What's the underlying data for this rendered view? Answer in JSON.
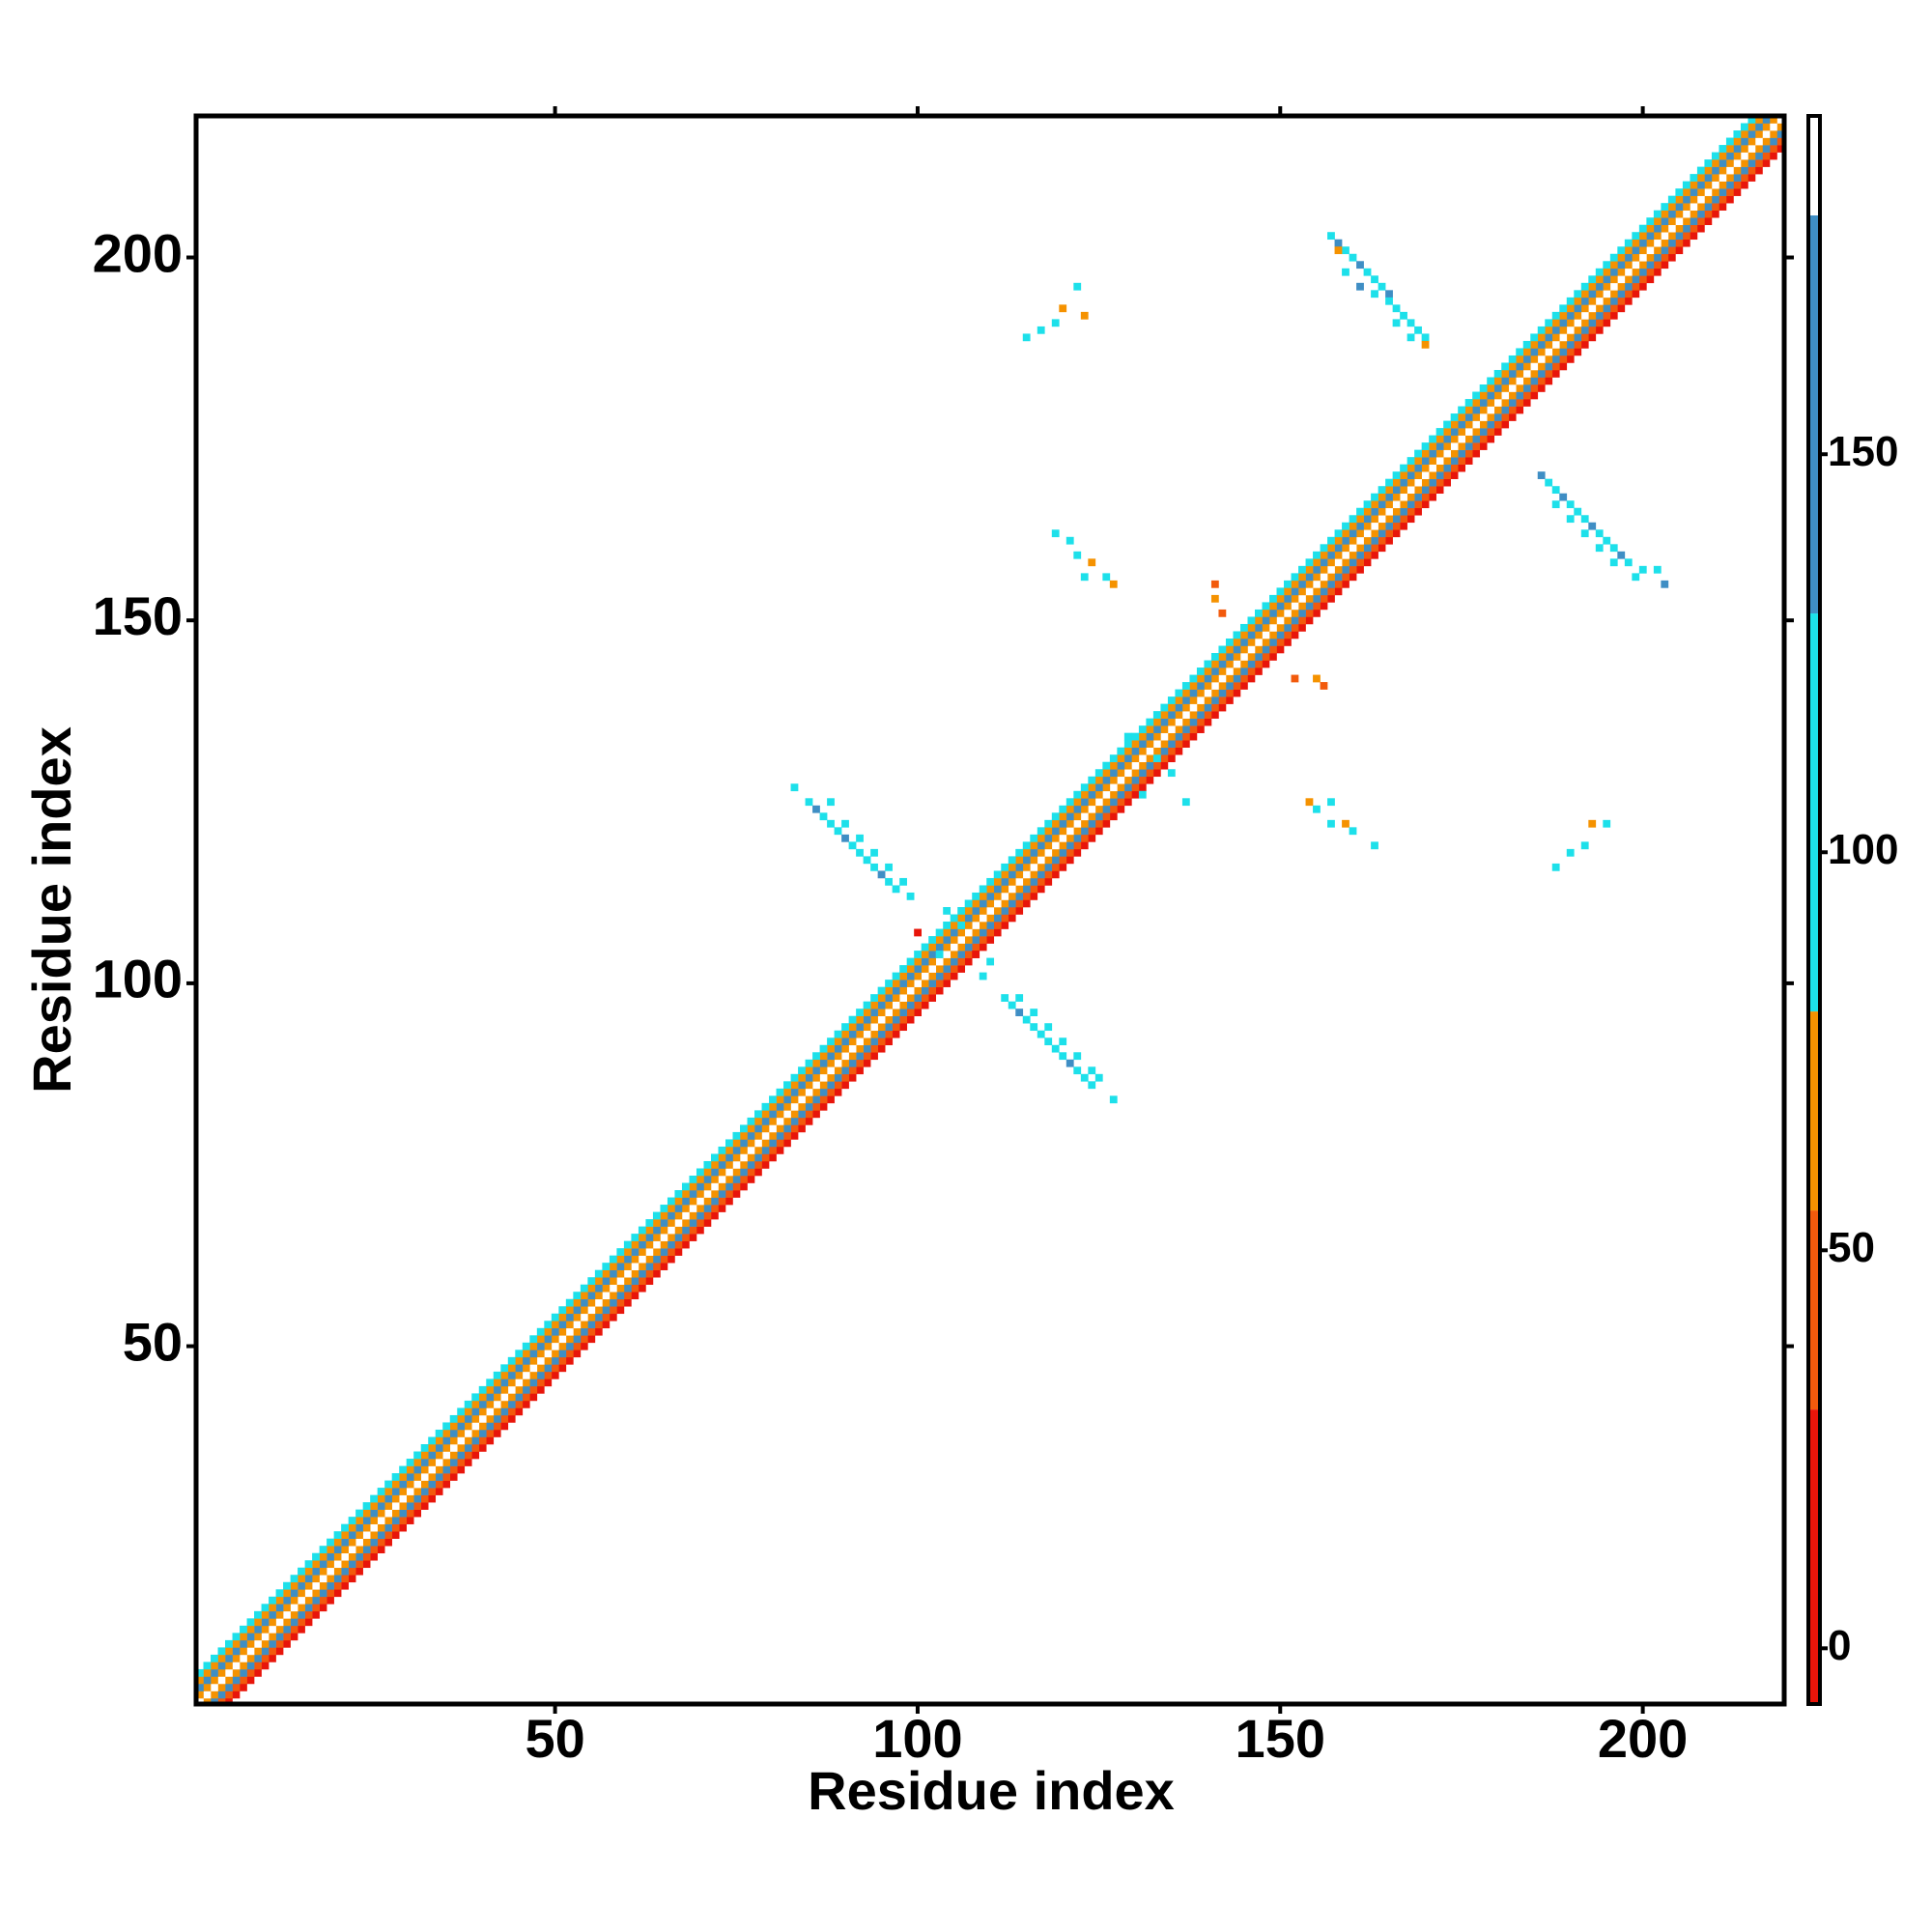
{
  "chart_data": {
    "type": "heatmap",
    "xlabel": "Residue index",
    "ylabel": "Residue index",
    "xlim": [
      0.5,
      219.5
    ],
    "ylim": [
      0.7,
      219.5
    ],
    "xticks": [
      50,
      100,
      150,
      200
    ],
    "yticks": [
      50,
      100,
      150,
      200
    ],
    "band": [
      {
        "offset": -4,
        "value": 20
      },
      {
        "offset": -3,
        "value": 40
      },
      {
        "offset": -2,
        "value": 140
      },
      {
        "offset": -1,
        "value": 60
      },
      {
        "offset": 0,
        "value": 185
      },
      {
        "offset": 1,
        "value": 60
      },
      {
        "offset": 2,
        "value": 140
      },
      {
        "offset": 3,
        "value": 60
      },
      {
        "offset": 4,
        "value": 100
      }
    ],
    "cells": [
      [
        157,
        203,
        120
      ],
      [
        158,
        202,
        150
      ],
      [
        159,
        201,
        100
      ],
      [
        160,
        200,
        120
      ],
      [
        161,
        199,
        150
      ],
      [
        162,
        198,
        100
      ],
      [
        163,
        197,
        120
      ],
      [
        164,
        196,
        100
      ],
      [
        165,
        195,
        150
      ],
      [
        166,
        193,
        100
      ],
      [
        167,
        192,
        120
      ],
      [
        168,
        191,
        100
      ],
      [
        169,
        190,
        100
      ],
      [
        170,
        189,
        100
      ],
      [
        159,
        198,
        100
      ],
      [
        161,
        196,
        150
      ],
      [
        163,
        195,
        100
      ],
      [
        165,
        194,
        120
      ],
      [
        166,
        191,
        100
      ],
      [
        168,
        189,
        100
      ],
      [
        170,
        188,
        60
      ],
      [
        158,
        201,
        60
      ],
      [
        186,
        170,
        150
      ],
      [
        187,
        169,
        100
      ],
      [
        188,
        168,
        120
      ],
      [
        189,
        167,
        150
      ],
      [
        190,
        166,
        100
      ],
      [
        191,
        165,
        120
      ],
      [
        192,
        164,
        100
      ],
      [
        193,
        163,
        150
      ],
      [
        194,
        162,
        100
      ],
      [
        195,
        161,
        120
      ],
      [
        196,
        160,
        100
      ],
      [
        197,
        159,
        150
      ],
      [
        198,
        158,
        100
      ],
      [
        200,
        157,
        100
      ],
      [
        202,
        157,
        100
      ],
      [
        203,
        155,
        150
      ],
      [
        188,
        166,
        100
      ],
      [
        190,
        164,
        120
      ],
      [
        192,
        162,
        100
      ],
      [
        194,
        160,
        100
      ],
      [
        196,
        158,
        100
      ],
      [
        199,
        156,
        100
      ],
      [
        112,
        98,
        120
      ],
      [
        113,
        97,
        100
      ],
      [
        114,
        96,
        150
      ],
      [
        115,
        95,
        100
      ],
      [
        116,
        94,
        120
      ],
      [
        117,
        93,
        100
      ],
      [
        118,
        92,
        100
      ],
      [
        119,
        91,
        120
      ],
      [
        120,
        90,
        100
      ],
      [
        121,
        89,
        150
      ],
      [
        122,
        88,
        100
      ],
      [
        123,
        87,
        100
      ],
      [
        124,
        86,
        100
      ],
      [
        127,
        84,
        100
      ],
      [
        114,
        98,
        100
      ],
      [
        116,
        96,
        100
      ],
      [
        118,
        94,
        120
      ],
      [
        120,
        92,
        100
      ],
      [
        122,
        90,
        100
      ],
      [
        124,
        88,
        120
      ],
      [
        125,
        87,
        100
      ],
      [
        83,
        127,
        100
      ],
      [
        85,
        125,
        100
      ],
      [
        86,
        124,
        150
      ],
      [
        87,
        123,
        100
      ],
      [
        88,
        122,
        120
      ],
      [
        89,
        121,
        100
      ],
      [
        90,
        120,
        150
      ],
      [
        91,
        119,
        100
      ],
      [
        92,
        118,
        120
      ],
      [
        93,
        117,
        100
      ],
      [
        94,
        116,
        100
      ],
      [
        95,
        115,
        150
      ],
      [
        96,
        114,
        100
      ],
      [
        97,
        113,
        100
      ],
      [
        99,
        112,
        100
      ],
      [
        88,
        125,
        100
      ],
      [
        90,
        122,
        100
      ],
      [
        92,
        120,
        120
      ],
      [
        94,
        118,
        100
      ],
      [
        96,
        116,
        100
      ],
      [
        98,
        114,
        100
      ],
      [
        115,
        189,
        100
      ],
      [
        117,
        190,
        100
      ],
      [
        119,
        191,
        100
      ],
      [
        120,
        193,
        60
      ],
      [
        122,
        196,
        100
      ],
      [
        123,
        192,
        60
      ],
      [
        119,
        162,
        100
      ],
      [
        121,
        161,
        100
      ],
      [
        122,
        159,
        100
      ],
      [
        124,
        158,
        60
      ],
      [
        126,
        156,
        100
      ],
      [
        127,
        155,
        60
      ],
      [
        123,
        156,
        100
      ],
      [
        141,
        155,
        40
      ],
      [
        141,
        153,
        60
      ],
      [
        142,
        151,
        40
      ],
      [
        152,
        142,
        40
      ],
      [
        155,
        142,
        60
      ],
      [
        156,
        141,
        40
      ],
      [
        154,
        125,
        60
      ],
      [
        155,
        124,
        100
      ],
      [
        157,
        122,
        100
      ],
      [
        159,
        122,
        60
      ],
      [
        160,
        121,
        100
      ],
      [
        163,
        119,
        100
      ],
      [
        157,
        125,
        100
      ],
      [
        188,
        116,
        100
      ],
      [
        190,
        118,
        100
      ],
      [
        192,
        119,
        100
      ],
      [
        193,
        122,
        60
      ],
      [
        195,
        122,
        100
      ],
      [
        104,
        110,
        100
      ],
      [
        106,
        108,
        100
      ],
      [
        103,
        104,
        100
      ],
      [
        109,
        101,
        100
      ],
      [
        110,
        103,
        100
      ],
      [
        131,
        126,
        100
      ],
      [
        133,
        131,
        100
      ],
      [
        135,
        129,
        100
      ],
      [
        137,
        125,
        100
      ],
      [
        129,
        134,
        100
      ],
      [
        100,
        107,
        20
      ],
      [
        108,
        104,
        20
      ]
    ],
    "colorbar": {
      "lim": [
        -7,
        192.5
      ],
      "ticks": [
        0,
        50,
        100,
        150
      ],
      "stops": [
        {
          "from": -7,
          "to": 30,
          "color": "#e8150a"
        },
        {
          "from": 30,
          "to": 55,
          "color": "#f25a0c"
        },
        {
          "from": 55,
          "to": 80,
          "color": "#f59200"
        },
        {
          "from": 80,
          "to": 130,
          "color": "#1de0ea"
        },
        {
          "from": 130,
          "to": 180,
          "color": "#3f8ec4"
        },
        {
          "from": 180,
          "to": 192.5,
          "color": "#ffffff"
        }
      ]
    }
  }
}
